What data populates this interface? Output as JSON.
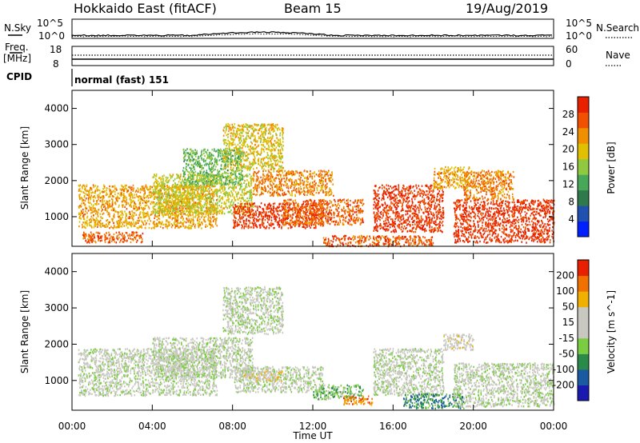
{
  "header": {
    "station": "Hokkaido East (fitACF)",
    "beam": "Beam 15",
    "date": "19/Aug/2019"
  },
  "top_panels": {
    "nsky_label": "N.Sky",
    "nsky_ticks": [
      "10^5",
      "10^0"
    ],
    "nsearch_label": "N.Search",
    "nsearch_ticks": [
      "10^5",
      "10^0"
    ],
    "freq_label": "Freq.",
    "freq_unit": "[MHz]",
    "freq_ticks": [
      "18",
      "8"
    ],
    "nave_label": "Nave",
    "nave_ticks": [
      "60",
      "0"
    ],
    "cpid_label": "CPID",
    "cpid_value": "normal (fast) 151"
  },
  "colors": {
    "power_scale": [
      "#0020ff",
      "#2050b0",
      "#2e7a4a",
      "#48a85a",
      "#90c840",
      "#e0c000",
      "#f09000",
      "#f05000",
      "#e82000"
    ],
    "velocity_scale": [
      "#1a1ab0",
      "#1a5aa0",
      "#2a8a4a",
      "#7acc40",
      "#c8c8c0",
      "#c8c8c0",
      "#f0b000",
      "#f07000",
      "#e82000"
    ]
  },
  "chart_data": [
    {
      "type": "heatmap",
      "panel": "power",
      "ylabel": "Slant Range [km]",
      "ylim": [
        180,
        4500
      ],
      "yticks": [
        1000,
        2000,
        3000,
        4000
      ],
      "xlim_hours": [
        0,
        24
      ],
      "xticks": [
        "00:00",
        "04:00",
        "08:00",
        "12:00",
        "16:00",
        "20:00",
        "00:00"
      ],
      "colorbar_label": "Power [dB]",
      "colorbar_ticks": [
        "28",
        "24",
        "20",
        "16",
        "12",
        "8",
        "4"
      ],
      "colorbar_range": [
        0,
        32
      ],
      "regions": [
        {
          "t0": 0.3,
          "t1": 7.2,
          "r0": 700,
          "r1": 1900,
          "level": 22
        },
        {
          "t0": 0.5,
          "t1": 3.5,
          "r0": 300,
          "r1": 600,
          "level": 26
        },
        {
          "t0": 4.0,
          "t1": 9.0,
          "r0": 1100,
          "r1": 2200,
          "level": 18
        },
        {
          "t0": 8.0,
          "t1": 12.5,
          "r0": 700,
          "r1": 1400,
          "level": 29
        },
        {
          "t0": 9.0,
          "t1": 13.0,
          "r0": 1600,
          "r1": 2300,
          "level": 24
        },
        {
          "t0": 10.5,
          "t1": 14.5,
          "r0": 800,
          "r1": 1500,
          "level": 26
        },
        {
          "t0": 7.5,
          "t1": 10.5,
          "r0": 2300,
          "r1": 3600,
          "level": 20
        },
        {
          "t0": 5.5,
          "t1": 8.5,
          "r0": 1900,
          "r1": 2900,
          "level": 14
        },
        {
          "t0": 15.0,
          "t1": 18.5,
          "r0": 600,
          "r1": 1900,
          "level": 29
        },
        {
          "t0": 12.5,
          "t1": 18.0,
          "r0": 200,
          "r1": 500,
          "level": 27
        },
        {
          "t0": 18.0,
          "t1": 19.8,
          "r0": 1800,
          "r1": 2400,
          "level": 22
        },
        {
          "t0": 19.0,
          "t1": 24.0,
          "r0": 300,
          "r1": 1500,
          "level": 29
        },
        {
          "t0": 19.5,
          "t1": 22.0,
          "r0": 1500,
          "r1": 2300,
          "level": 24
        }
      ]
    },
    {
      "type": "heatmap",
      "panel": "velocity",
      "ylabel": "Slant Range [km]",
      "xlabel": "Time UT",
      "ylim": [
        180,
        4500
      ],
      "yticks": [
        1000,
        2000,
        3000,
        4000
      ],
      "xlim_hours": [
        0,
        24
      ],
      "xticks": [
        "00:00",
        "04:00",
        "08:00",
        "12:00",
        "16:00",
        "20:00",
        "00:00"
      ],
      "colorbar_label": "Velocity [m s^-1]",
      "colorbar_ticks": [
        "200",
        "100",
        "50",
        "15",
        "-15",
        "-50",
        "-100",
        "-200"
      ],
      "colorbar_range": [
        -250,
        250
      ],
      "regions": [
        {
          "t0": 0.3,
          "t1": 7.2,
          "r0": 600,
          "r1": 1900,
          "level": 0
        },
        {
          "t0": 4.0,
          "t1": 9.0,
          "r0": 1100,
          "r1": 2200,
          "level": 0
        },
        {
          "t0": 8.0,
          "t1": 12.5,
          "r0": 700,
          "r1": 1400,
          "level": 0
        },
        {
          "t0": 7.5,
          "t1": 10.5,
          "r0": 2300,
          "r1": 3600,
          "level": 0
        },
        {
          "t0": 8.5,
          "t1": 10.5,
          "r0": 1000,
          "r1": 1300,
          "level": 60
        },
        {
          "t0": 15.0,
          "t1": 18.5,
          "r0": 600,
          "r1": 1900,
          "level": 0
        },
        {
          "t0": 12.0,
          "t1": 14.5,
          "r0": 500,
          "r1": 900,
          "level": -60
        },
        {
          "t0": 16.5,
          "t1": 19.5,
          "r0": 250,
          "r1": 650,
          "level": -120
        },
        {
          "t0": 18.5,
          "t1": 20.0,
          "r0": 1850,
          "r1": 2300,
          "level": 40
        },
        {
          "t0": 19.0,
          "t1": 24.0,
          "r0": 300,
          "r1": 1500,
          "level": 0
        },
        {
          "t0": 13.5,
          "t1": 15.0,
          "r0": 350,
          "r1": 600,
          "level": 150
        }
      ]
    }
  ]
}
